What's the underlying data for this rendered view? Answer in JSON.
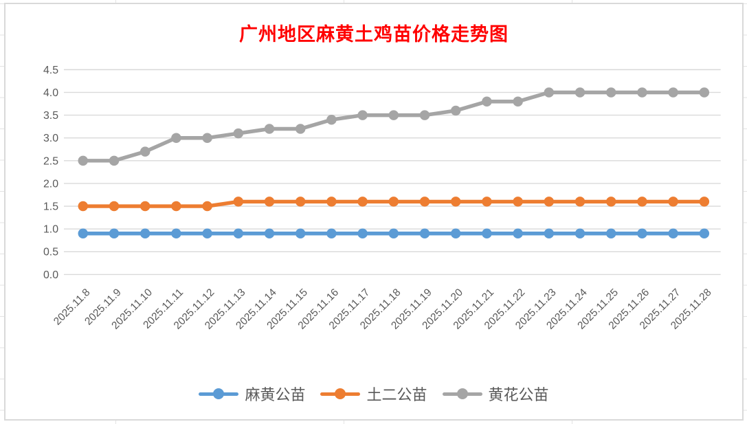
{
  "chart_data": {
    "type": "line",
    "title": "广州地区麻黄土鸡苗价格走势图",
    "title_color": "#FF0000",
    "categories": [
      "2025.11.8",
      "2025.11.9",
      "2025.11.10",
      "2025.11.11",
      "2025.11.12",
      "2025.11.13",
      "2025.11.14",
      "2025.11.15",
      "2025.11.16",
      "2025.11.17",
      "2025.11.18",
      "2025.11.19",
      "2025.11.20",
      "2025.11.21",
      "2025.11.22",
      "2025.11.23",
      "2025.11.24",
      "2025.11.25",
      "2025.11.26",
      "2025.11.27",
      "2025.11.28"
    ],
    "series": [
      {
        "name": "麻黄公苗",
        "color": "#5B9BD5",
        "values": [
          0.9,
          0.9,
          0.9,
          0.9,
          0.9,
          0.9,
          0.9,
          0.9,
          0.9,
          0.9,
          0.9,
          0.9,
          0.9,
          0.9,
          0.9,
          0.9,
          0.9,
          0.9,
          0.9,
          0.9,
          0.9
        ]
      },
      {
        "name": "土二公苗",
        "color": "#ED7D31",
        "values": [
          1.5,
          1.5,
          1.5,
          1.5,
          1.5,
          1.6,
          1.6,
          1.6,
          1.6,
          1.6,
          1.6,
          1.6,
          1.6,
          1.6,
          1.6,
          1.6,
          1.6,
          1.6,
          1.6,
          1.6,
          1.6
        ]
      },
      {
        "name": "黄花公苗",
        "color": "#A5A5A5",
        "values": [
          2.5,
          2.5,
          2.7,
          3.0,
          3.0,
          3.1,
          3.2,
          3.2,
          3.4,
          3.5,
          3.5,
          3.5,
          3.6,
          3.8,
          3.8,
          4.0,
          4.0,
          4.0,
          4.0,
          4.0,
          4.0
        ]
      }
    ],
    "xlabel": "",
    "ylabel": "",
    "ylim": [
      0,
      4.5
    ],
    "y_tick_step": 0.5,
    "y_tick_labels": [
      "0.0",
      "0.5",
      "1.0",
      "1.5",
      "2.0",
      "2.5",
      "3.0",
      "3.5",
      "4.0",
      "4.5"
    ],
    "grid": true,
    "grid_color": "#D9D9D9",
    "axis_label_color": "#595959",
    "legend_position": "bottom"
  }
}
